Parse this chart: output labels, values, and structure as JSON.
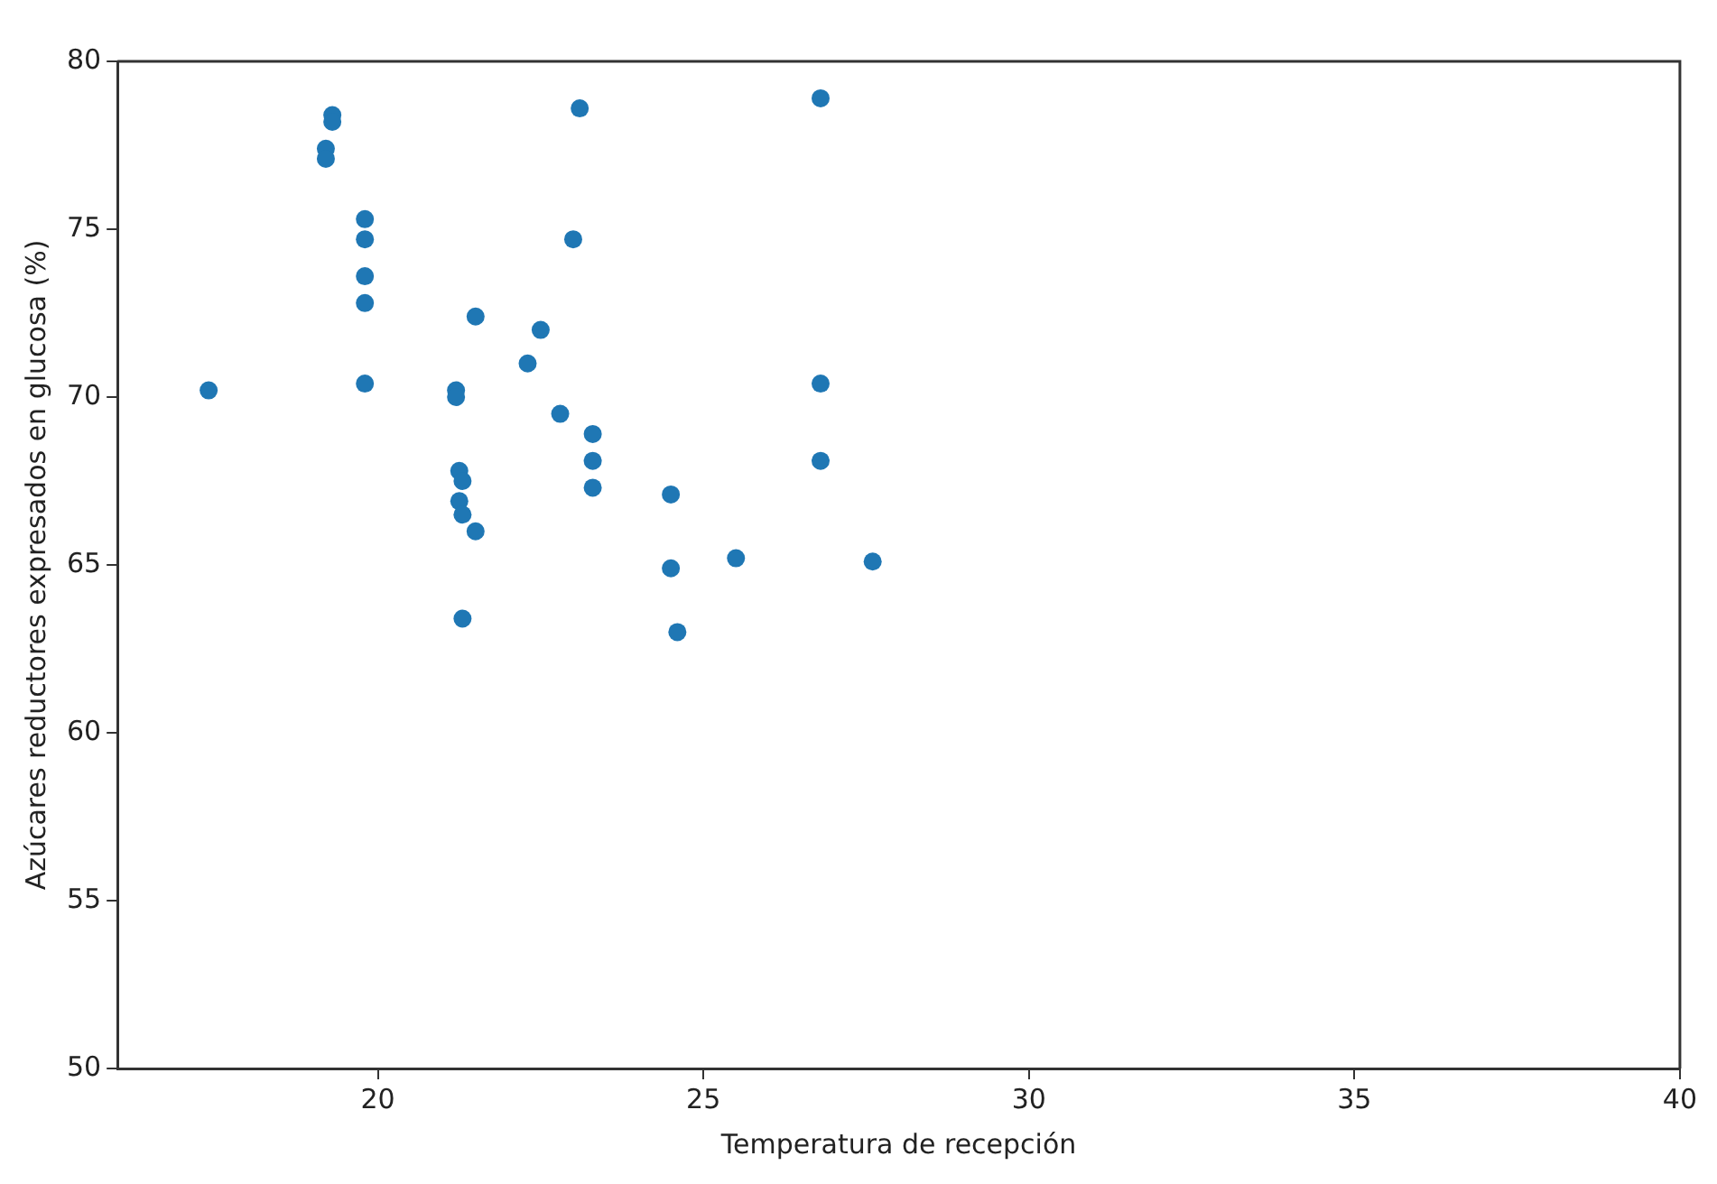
{
  "chart_data": {
    "type": "scatter",
    "xlabel": "Temperatura de recepción",
    "ylabel": "Azúcares reductores expresados en glucosa (%)",
    "x": [
      17.4,
      19.3,
      19.3,
      19.2,
      19.2,
      19.8,
      19.8,
      19.8,
      19.8,
      19.8,
      21.5,
      21.2,
      21.2,
      21.25,
      21.3,
      21.25,
      21.3,
      21.5,
      21.3,
      22.3,
      22.5,
      22.8,
      23.3,
      23.3,
      23.3,
      23.1,
      23.0,
      24.5,
      24.5,
      24.6,
      25.5,
      26.8,
      26.8,
      26.8,
      27.6
    ],
    "series": [
      {
        "color": "#1f77b4",
        "values": [
          70.2,
          78.4,
          78.2,
          77.4,
          77.1,
          75.3,
          74.7,
          73.6,
          72.8,
          70.4,
          72.4,
          70.2,
          70.0,
          67.8,
          67.5,
          66.9,
          66.5,
          66.0,
          63.4,
          71.0,
          72.0,
          69.5,
          68.9,
          68.1,
          67.3,
          78.6,
          74.7,
          67.1,
          64.9,
          63.0,
          65.2,
          78.9,
          70.4,
          68.1,
          65.1
        ]
      }
    ],
    "xlim": [
      16,
      40
    ],
    "xticks": [
      20,
      25,
      30,
      35,
      40
    ],
    "ylim": [
      50,
      80
    ],
    "yticks": [
      50,
      55,
      60,
      65,
      70,
      75,
      80
    ],
    "grid": false,
    "legend": false,
    "marker": "circle"
  }
}
